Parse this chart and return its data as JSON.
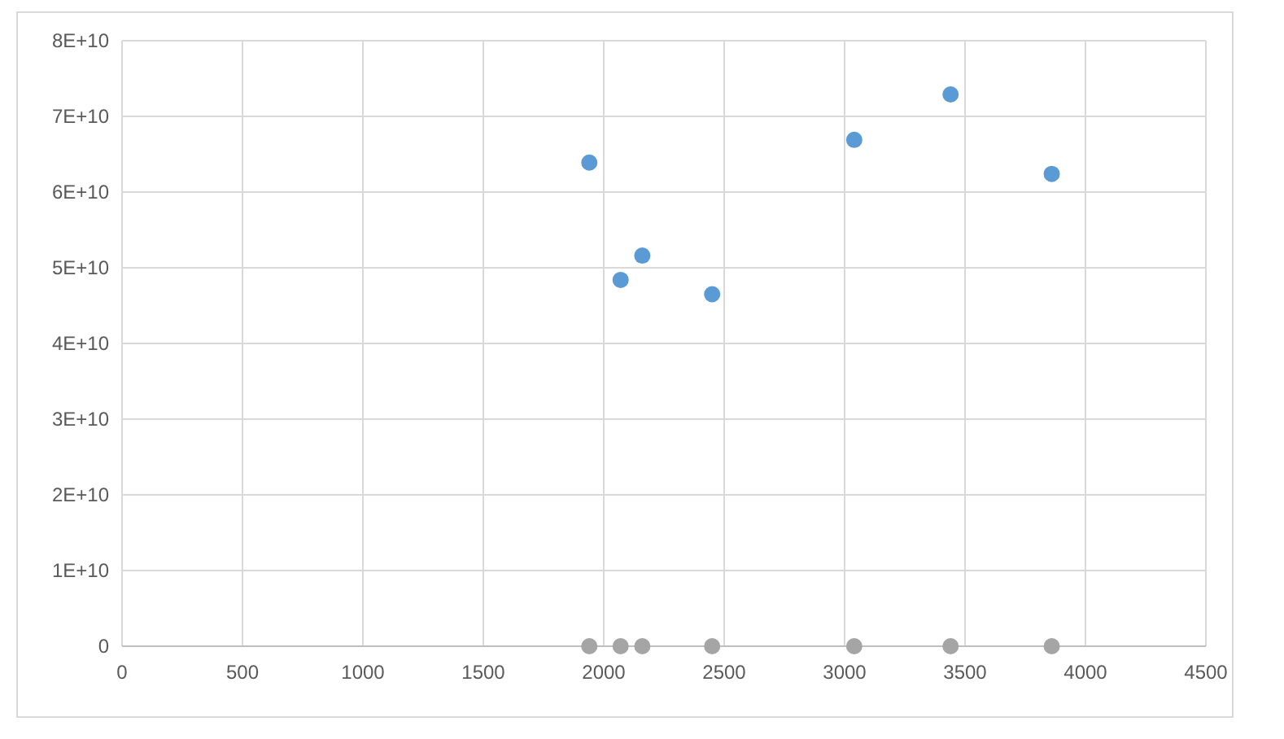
{
  "chart_data": {
    "type": "scatter",
    "marker": "circle",
    "grid": true,
    "xlim": [
      0,
      4500
    ],
    "xticks": [
      0,
      500,
      1000,
      1500,
      2000,
      2500,
      3000,
      3500,
      4000,
      4500
    ],
    "ylim": [
      0,
      80000000000
    ],
    "yticks": [
      0,
      {
        "value": 10000000000,
        "label": "1E+10"
      },
      {
        "value": 20000000000,
        "label": "2E+10"
      },
      {
        "value": 30000000000,
        "label": "3E+10"
      },
      {
        "value": 40000000000,
        "label": "4E+10"
      },
      {
        "value": 50000000000,
        "label": "5E+10"
      },
      {
        "value": 60000000000,
        "label": "6E+10"
      },
      {
        "value": 70000000000,
        "label": "7E+10"
      },
      {
        "value": 80000000000,
        "label": "8E+10"
      }
    ],
    "series": [
      {
        "color": "#5b9bd5",
        "x": [
          1940,
          2070,
          2160,
          2450,
          3040,
          3440,
          3860
        ],
        "values": [
          63900000000,
          48400000000,
          51600000000,
          46500000000,
          66900000000,
          72900000000,
          62400000000
        ]
      },
      {
        "color": "#a5a5a5",
        "x": [
          1940,
          2070,
          2160,
          2450,
          3040,
          3440,
          3860
        ],
        "values": [
          0,
          0,
          0,
          0,
          0,
          0,
          0
        ]
      }
    ]
  }
}
